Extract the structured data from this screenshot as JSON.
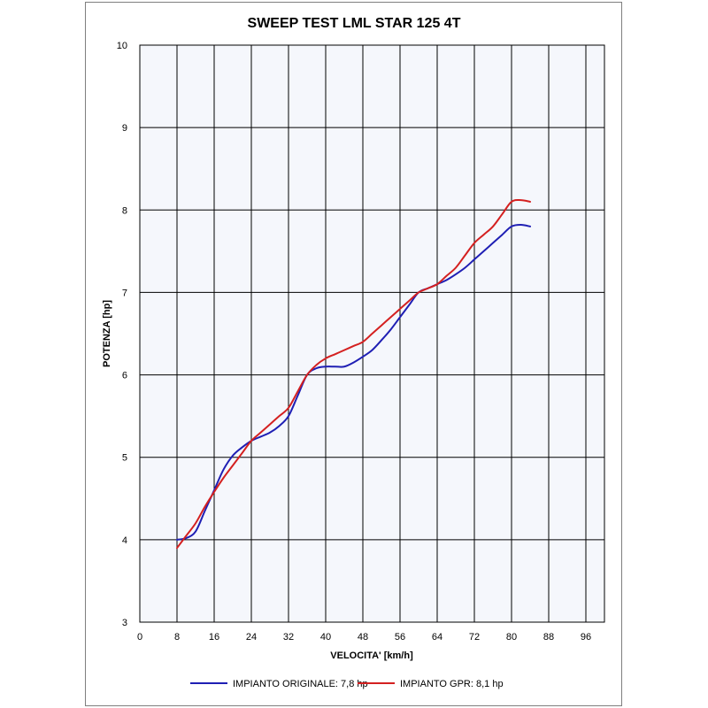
{
  "chart_data": {
    "type": "line",
    "title": "SWEEP TEST LML STAR 125 4T",
    "xlabel": "VELOCITA' [km/h]",
    "ylabel": "POTENZA [hp]",
    "xlim": [
      0,
      100
    ],
    "ylim": [
      3,
      10
    ],
    "xticks": [
      "0",
      "8",
      "16",
      "24",
      "32",
      "40",
      "48",
      "56",
      "64",
      "72",
      "80",
      "88",
      "96"
    ],
    "yticks": [
      "3",
      "4",
      "5",
      "6",
      "7",
      "8",
      "9",
      "10"
    ],
    "grid": true,
    "legend_position": "bottom",
    "series": [
      {
        "name": "IMPIANTO ORIGINALE: 7,8 hp",
        "color": "#1f1fb4",
        "x": [
          8,
          10,
          12,
          14,
          16,
          18,
          20,
          22,
          24,
          26,
          28,
          30,
          32,
          34,
          36,
          38,
          40,
          42,
          44,
          46,
          48,
          50,
          52,
          54,
          56,
          58,
          60,
          62,
          64,
          66,
          68,
          70,
          72,
          74,
          76,
          78,
          80,
          82,
          84
        ],
        "y": [
          4.0,
          4.02,
          4.1,
          4.35,
          4.6,
          4.85,
          5.02,
          5.12,
          5.2,
          5.25,
          5.3,
          5.38,
          5.5,
          5.75,
          6.0,
          6.08,
          6.1,
          6.1,
          6.1,
          6.15,
          6.22,
          6.3,
          6.42,
          6.55,
          6.7,
          6.85,
          7.0,
          7.05,
          7.1,
          7.15,
          7.22,
          7.3,
          7.4,
          7.5,
          7.6,
          7.7,
          7.8,
          7.82,
          7.8
        ]
      },
      {
        "name": "IMPIANTO GPR: 8,1 hp",
        "color": "#d42020",
        "x": [
          8,
          10,
          12,
          14,
          16,
          18,
          20,
          22,
          24,
          26,
          28,
          30,
          32,
          34,
          36,
          38,
          40,
          42,
          44,
          46,
          48,
          50,
          52,
          54,
          56,
          58,
          60,
          62,
          64,
          66,
          68,
          70,
          72,
          74,
          76,
          78,
          80,
          82,
          84
        ],
        "y": [
          3.9,
          4.05,
          4.2,
          4.4,
          4.58,
          4.75,
          4.9,
          5.05,
          5.2,
          5.3,
          5.4,
          5.5,
          5.6,
          5.8,
          6.0,
          6.12,
          6.2,
          6.25,
          6.3,
          6.35,
          6.4,
          6.5,
          6.6,
          6.7,
          6.8,
          6.9,
          7.0,
          7.05,
          7.1,
          7.2,
          7.3,
          7.45,
          7.6,
          7.7,
          7.8,
          7.95,
          8.1,
          8.12,
          8.1
        ]
      }
    ]
  }
}
